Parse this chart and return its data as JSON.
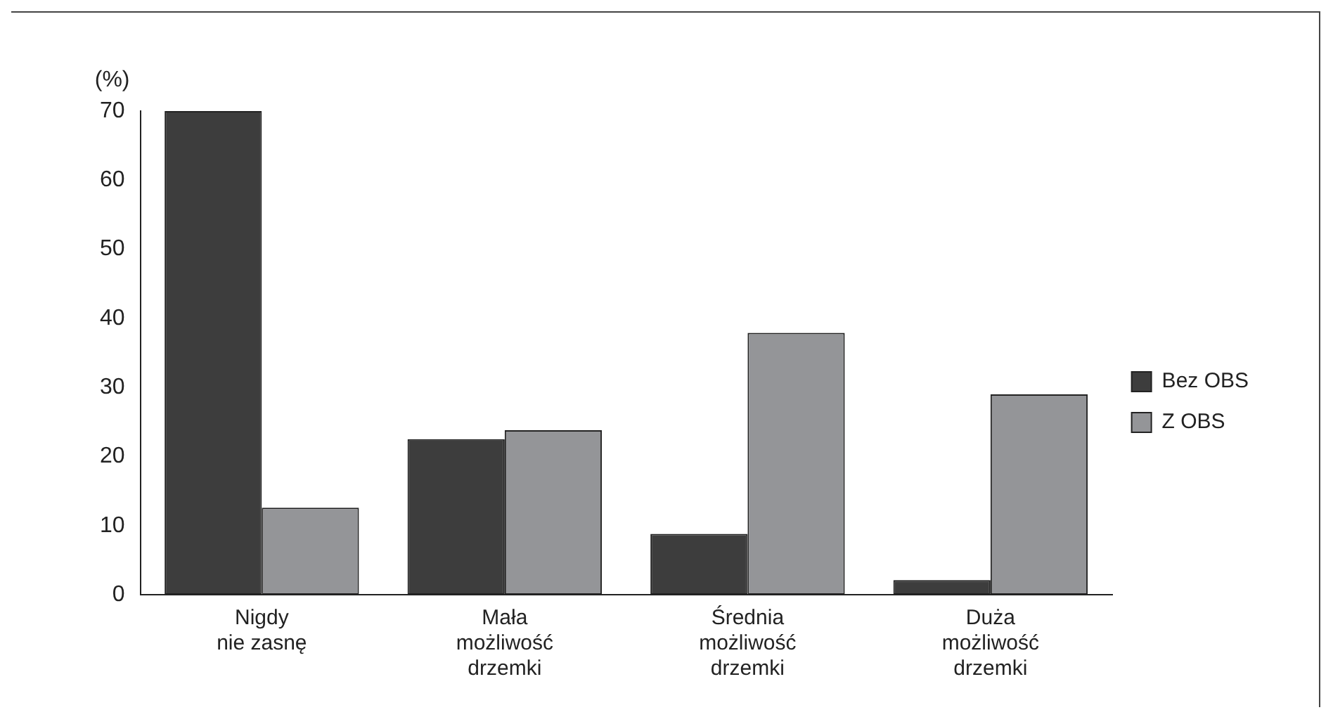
{
  "chart_data": {
    "type": "bar",
    "ylabel": "(%)",
    "categories": [
      "Nigdy\nnie zasnę",
      "Mała\nmożliwość\ndrzemki",
      "Średnia\nmożliwość\ndrzemki",
      "Duża\nmożliwość\ndrzemki"
    ],
    "series": [
      {
        "name": "Bez OBS",
        "color": "#3d3d3d",
        "values": [
          70,
          22.5,
          8.8,
          2.1
        ]
      },
      {
        "name": "Z OBS",
        "color": "#949598",
        "values": [
          12.6,
          23.8,
          37.9,
          29.0
        ]
      }
    ],
    "ylim": [
      0,
      70
    ],
    "yticks": [
      0,
      10,
      20,
      30,
      40,
      50,
      60,
      70
    ],
    "grid": false,
    "legend": "right"
  }
}
